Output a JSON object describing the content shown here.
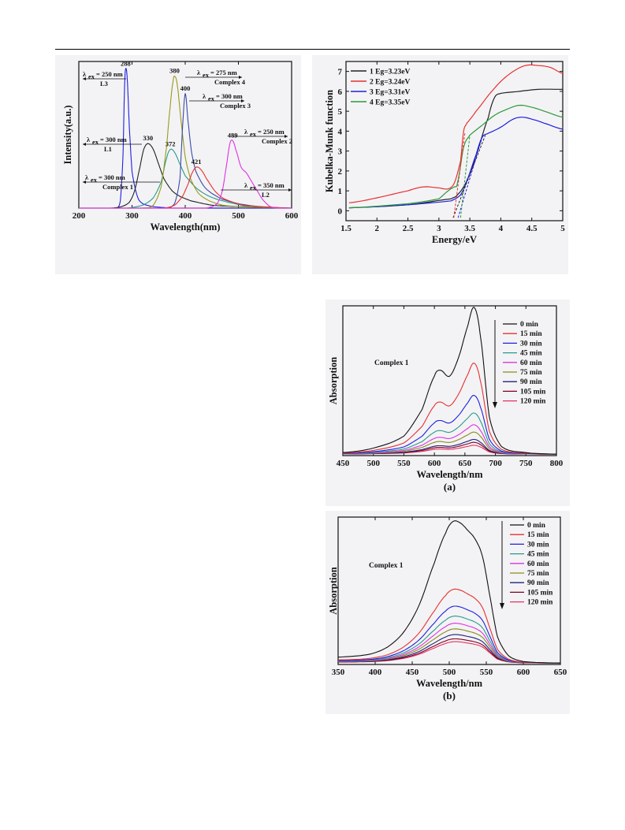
{
  "chart_data": [
    {
      "type": "line",
      "id": "pl",
      "xlabel": "Wavelength(nm)",
      "ylabel": "Intensity(a.u.)",
      "xlim": [
        200,
        600
      ],
      "ylim": [
        0,
        1
      ],
      "xticks": [
        200,
        300,
        400,
        500,
        600
      ],
      "y_ticks_labeled": false,
      "series": [
        {
          "color": "#1f1fe0",
          "peak_x": 288,
          "peak_label": "288",
          "x": [
            200,
            270,
            278,
            283,
            286,
            288,
            291,
            295,
            300,
            310,
            320,
            340,
            380,
            450,
            600
          ],
          "y": [
            0,
            0,
            0.05,
            0.35,
            0.82,
            0.95,
            0.88,
            0.55,
            0.25,
            0.08,
            0.03,
            0.01,
            0,
            0,
            0
          ]
        },
        {
          "color": "#222222",
          "peak_x": 330,
          "peak_label": "330",
          "x": [
            200,
            260,
            280,
            295,
            305,
            315,
            322,
            330,
            340,
            350,
            360,
            375,
            390,
            410,
            450,
            500,
            600
          ],
          "y": [
            0,
            0,
            0.01,
            0.04,
            0.12,
            0.28,
            0.4,
            0.44,
            0.4,
            0.3,
            0.2,
            0.12,
            0.08,
            0.05,
            0.02,
            0.01,
            0
          ]
        },
        {
          "color": "#2a9a8a",
          "peak_x": 372,
          "peak_label": "372",
          "x": [
            200,
            290,
            320,
            340,
            355,
            365,
            372,
            380,
            390,
            400,
            420,
            440,
            460,
            480,
            520,
            600
          ],
          "y": [
            0,
            0,
            0.02,
            0.07,
            0.18,
            0.34,
            0.4,
            0.38,
            0.3,
            0.22,
            0.14,
            0.09,
            0.06,
            0.04,
            0.01,
            0
          ]
        },
        {
          "color": "#9a9a1a",
          "peak_x": 380,
          "peak_label": "380",
          "x": [
            200,
            320,
            340,
            355,
            365,
            372,
            377,
            380,
            385,
            392,
            400,
            410,
            425,
            445,
            470,
            500,
            600
          ],
          "y": [
            0,
            0,
            0.02,
            0.15,
            0.42,
            0.7,
            0.86,
            0.9,
            0.84,
            0.6,
            0.35,
            0.2,
            0.1,
            0.05,
            0.02,
            0.01,
            0
          ]
        },
        {
          "color": "#3a4aa8",
          "peak_x": 400,
          "peak_label": "400",
          "x": [
            200,
            360,
            380,
            390,
            395,
            400,
            405,
            412,
            420,
            435,
            450,
            470,
            500,
            540,
            600
          ],
          "y": [
            0,
            0,
            0.03,
            0.2,
            0.55,
            0.78,
            0.6,
            0.38,
            0.25,
            0.15,
            0.1,
            0.06,
            0.03,
            0.01,
            0
          ]
        },
        {
          "color": "#e83030",
          "peak_x": 421,
          "peak_label": "421",
          "x": [
            200,
            360,
            380,
            395,
            405,
            413,
            421,
            430,
            440,
            455,
            470,
            490,
            510,
            540,
            600
          ],
          "y": [
            0,
            0,
            0.02,
            0.08,
            0.16,
            0.24,
            0.28,
            0.26,
            0.2,
            0.12,
            0.07,
            0.04,
            0.02,
            0.01,
            0
          ]
        },
        {
          "color": "#e030e0",
          "peak_x": 489,
          "peak_label": "489",
          "x": [
            200,
            440,
            460,
            470,
            478,
            484,
            489,
            495,
            505,
            515,
            525,
            535,
            545,
            560,
            580,
            600
          ],
          "y": [
            0,
            0,
            0.03,
            0.12,
            0.3,
            0.44,
            0.46,
            0.4,
            0.28,
            0.24,
            0.18,
            0.12,
            0.06,
            0.01,
            0,
            0
          ]
        }
      ],
      "annotations": {
        "a1": {
          "ex": "250 nm",
          "name": "L3"
        },
        "a2": {
          "ex": "275 nm",
          "name": "Complex 4"
        },
        "a3": {
          "ex": "300 nm",
          "name": "Complex 3"
        },
        "a4": {
          "ex": "300 nm",
          "name": "L1"
        },
        "a5": {
          "ex": "250 nm",
          "name": "Complex 2"
        },
        "a6": {
          "ex": "300 nm",
          "name": "Complex 1"
        },
        "a7": {
          "ex": "350 nm",
          "name": "L2"
        }
      }
    },
    {
      "type": "line",
      "id": "km",
      "xlabel": "Energy/eV",
      "ylabel": "Kubelka-Munk function",
      "xlim": [
        1.5,
        5.0
      ],
      "ylim": [
        -0.5,
        7.5
      ],
      "xticks": [
        1.5,
        2.0,
        2.5,
        3.0,
        3.5,
        4.0,
        4.5,
        5.0
      ],
      "yticks": [
        0,
        1,
        2,
        3,
        4,
        5,
        6,
        7
      ],
      "legend_position": "top-left",
      "series": [
        {
          "name": "1 Eg=3.23eV",
          "color": "#222222",
          "x": [
            1.55,
            2.5,
            3.2,
            3.3,
            3.45,
            3.6,
            3.8,
            3.9,
            4.0,
            4.3,
            4.6,
            5.0
          ],
          "y": [
            0.15,
            0.3,
            0.6,
            0.8,
            1.5,
            2.8,
            4.7,
            5.7,
            5.9,
            6.0,
            6.1,
            6.1
          ]
        },
        {
          "name": "2 Eg=3.24eV",
          "color": "#e83030",
          "x": [
            1.55,
            2.0,
            2.5,
            2.75,
            3.0,
            3.15,
            3.25,
            3.35,
            3.4,
            3.45,
            3.6,
            3.8,
            4.0,
            4.2,
            4.4,
            4.6,
            4.8,
            5.0
          ],
          "y": [
            0.4,
            0.65,
            1.0,
            1.2,
            1.15,
            1.1,
            1.4,
            2.5,
            4.0,
            4.4,
            5.0,
            5.8,
            6.5,
            7.0,
            7.3,
            7.3,
            7.2,
            6.9
          ]
        },
        {
          "name": "3 Eg=3.31eV",
          "color": "#1f1fe0",
          "x": [
            1.55,
            2.5,
            3.2,
            3.35,
            3.45,
            3.6,
            3.7,
            3.8,
            4.0,
            4.2,
            4.35,
            4.5,
            4.7,
            5.0
          ],
          "y": [
            0.15,
            0.3,
            0.5,
            0.8,
            1.5,
            2.8,
            3.7,
            3.9,
            4.2,
            4.6,
            4.7,
            4.6,
            4.4,
            4.1
          ]
        },
        {
          "name": "4 Eg=3.35eV",
          "color": "#2a9a3a",
          "x": [
            1.55,
            2.5,
            3.0,
            3.15,
            3.25,
            3.3,
            3.4,
            3.5,
            3.7,
            3.9,
            4.1,
            4.3,
            4.5,
            4.7,
            5.0
          ],
          "y": [
            0.15,
            0.35,
            0.6,
            1.0,
            1.2,
            1.4,
            3.2,
            3.8,
            4.3,
            4.8,
            5.1,
            5.3,
            5.2,
            5.0,
            4.7
          ]
        }
      ],
      "tangents": [
        {
          "color": "#222222",
          "x": [
            3.23,
            3.75
          ],
          "y": [
            -0.35,
            3.8
          ]
        },
        {
          "color": "#e83030",
          "x": [
            3.24,
            3.42
          ],
          "y": [
            -0.35,
            3.9
          ]
        },
        {
          "color": "#1f1fe0",
          "x": [
            3.31,
            3.7
          ],
          "y": [
            -0.35,
            3.7
          ]
        },
        {
          "color": "#2a9a3a",
          "x": [
            3.35,
            3.5
          ],
          "y": [
            -0.35,
            3.8
          ]
        }
      ]
    },
    {
      "type": "line",
      "id": "abs_a",
      "xlabel": "Wavelength/nm",
      "ylabel": "Absorption",
      "caption": "(a)",
      "inner_label": "Complex 1",
      "xlim": [
        450,
        800
      ],
      "ylim": [
        0,
        1
      ],
      "xticks": [
        450,
        500,
        550,
        600,
        650,
        700,
        750,
        800
      ],
      "y_ticks_labeled": false,
      "legend_position": "top-right",
      "legend_has_arrow": true,
      "x": [
        450,
        500,
        550,
        580,
        600,
        610,
        625,
        640,
        655,
        665,
        675,
        690,
        710,
        750,
        800
      ],
      "shape": [
        0.01,
        0.04,
        0.12,
        0.3,
        0.52,
        0.56,
        0.52,
        0.65,
        0.86,
        0.98,
        0.8,
        0.25,
        0.05,
        0.01,
        0.0
      ],
      "series": [
        {
          "name": "0 min",
          "color": "#111111",
          "scale": 1.0
        },
        {
          "name": "15 min",
          "color": "#e83030",
          "scale": 0.62
        },
        {
          "name": "30 min",
          "color": "#1f1fe0",
          "scale": 0.4
        },
        {
          "name": "45 min",
          "color": "#2a9a8a",
          "scale": 0.28
        },
        {
          "name": "60 min",
          "color": "#e030e0",
          "scale": 0.2
        },
        {
          "name": "75 min",
          "color": "#8a8a1a",
          "scale": 0.15
        },
        {
          "name": "90 min",
          "color": "#202080",
          "scale": 0.1
        },
        {
          "name": "105 min",
          "color": "#800020",
          "scale": 0.08
        },
        {
          "name": "120 min",
          "color": "#e83060",
          "scale": 0.06
        }
      ]
    },
    {
      "type": "line",
      "id": "abs_b",
      "xlabel": "Wavelength/nm",
      "ylabel": "Absorption",
      "caption": "(b)",
      "inner_label": "Complex 1",
      "xlim": [
        350,
        650
      ],
      "ylim": [
        0,
        1
      ],
      "xticks": [
        350,
        400,
        450,
        500,
        550,
        600,
        650
      ],
      "y_ticks_labeled": false,
      "legend_position": "top-right",
      "legend_has_arrow": true,
      "x": [
        350,
        380,
        400,
        420,
        440,
        460,
        480,
        495,
        505,
        515,
        525,
        535,
        545,
        555,
        565,
        580,
        600,
        650
      ],
      "shape": [
        0.04,
        0.05,
        0.07,
        0.12,
        0.22,
        0.4,
        0.68,
        0.88,
        0.96,
        0.95,
        0.9,
        0.84,
        0.72,
        0.45,
        0.18,
        0.05,
        0.01,
        0.0
      ],
      "series": [
        {
          "name": "0 min",
          "color": "#111111",
          "scale": 1.0
        },
        {
          "name": "15 min",
          "color": "#e83030",
          "scale": 0.52
        },
        {
          "name": "30 min",
          "color": "#1f1fe0",
          "scale": 0.4
        },
        {
          "name": "45 min",
          "color": "#2a9a8a",
          "scale": 0.33
        },
        {
          "name": "60 min",
          "color": "#e030e0",
          "scale": 0.28
        },
        {
          "name": "75 min",
          "color": "#8a8a1a",
          "scale": 0.24
        },
        {
          "name": "90 min",
          "color": "#202080",
          "scale": 0.2
        },
        {
          "name": "105 min",
          "color": "#800020",
          "scale": 0.17
        },
        {
          "name": "120 min",
          "color": "#e83060",
          "scale": 0.15
        }
      ]
    }
  ]
}
